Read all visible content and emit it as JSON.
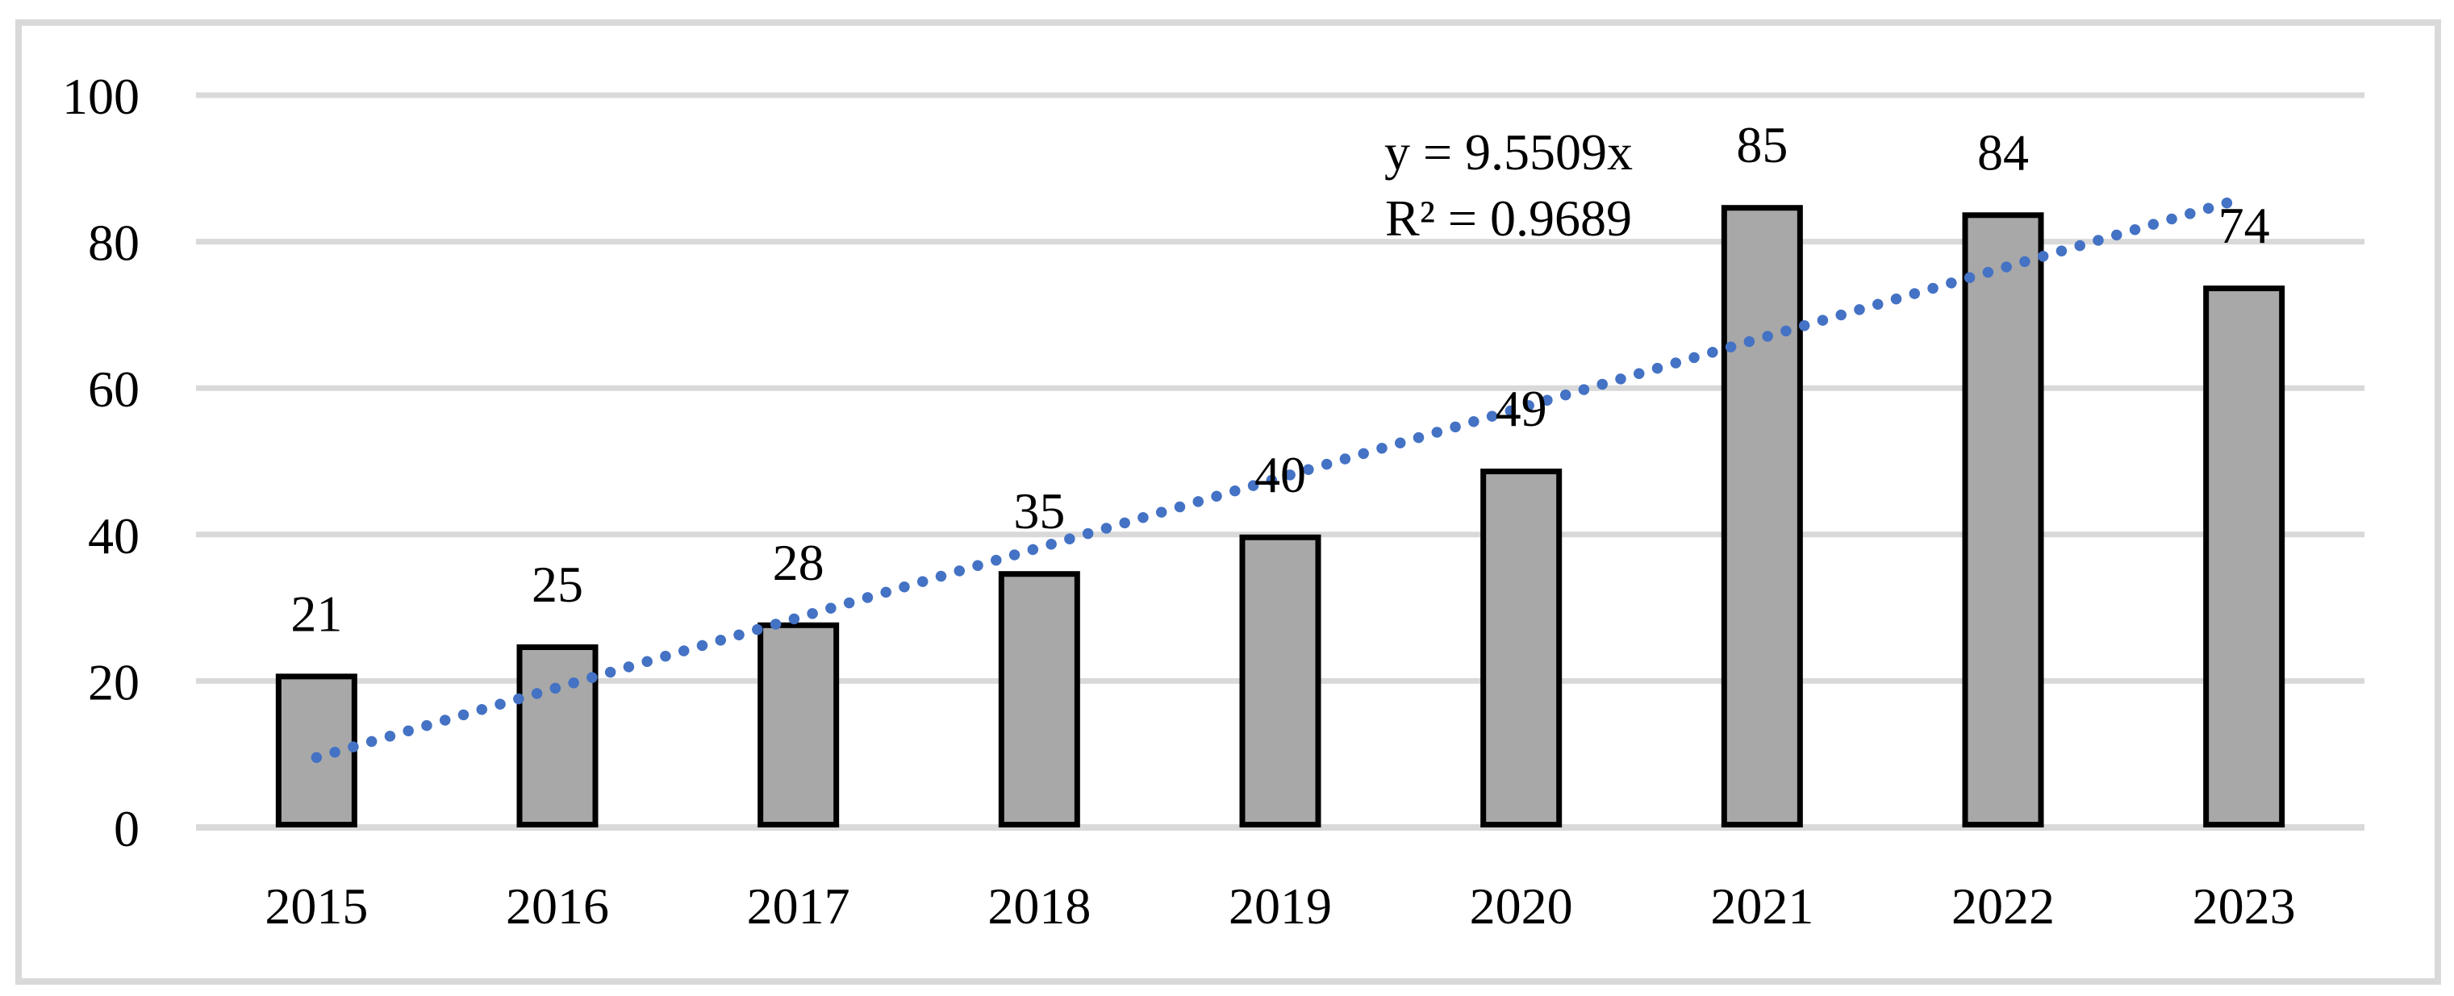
{
  "figure": {
    "background": "#FFFFFF",
    "frame_color": "#D9D9D9"
  },
  "chart_data": {
    "type": "bar",
    "title": "",
    "xlabel": "",
    "ylabel": "",
    "categories": [
      "2015",
      "2016",
      "2017",
      "2018",
      "2019",
      "2020",
      "2021",
      "2022",
      "2023"
    ],
    "values": [
      21,
      25,
      28,
      35,
      40,
      49,
      85,
      84,
      74
    ],
    "data_labels": [
      "21",
      "25",
      "28",
      "35",
      "40",
      "49",
      "85",
      "84",
      "74"
    ],
    "bar_fill": "#A8A8A8",
    "bar_border": "#000000",
    "ylim": [
      0,
      100
    ],
    "yticks": [
      0,
      20,
      40,
      60,
      80,
      100
    ],
    "ytick_labels": [
      "0",
      "20",
      "40",
      "60",
      "80",
      "100"
    ],
    "grid": true,
    "gridline_color": "#D9D9D9",
    "legend_position": "none",
    "text_color": "#000000",
    "trendline": {
      "type": "linear",
      "slope": 9.5509,
      "equation_label": "y = 9.5509x",
      "r2_label": "R² = 0.9689",
      "color": "#4472C4",
      "style": "dotted"
    }
  }
}
